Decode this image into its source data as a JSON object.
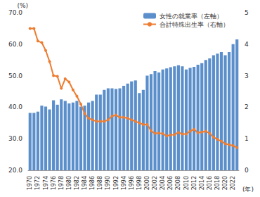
{
  "chart_data": {
    "type": "bar",
    "y_label": "(%)",
    "x_label": "(年)",
    "categories": [
      "1970",
      null,
      "1972",
      null,
      "1974",
      null,
      "1976",
      null,
      "1978",
      null,
      "1980",
      null,
      "1982",
      null,
      "1984",
      null,
      "1986",
      null,
      "1988",
      null,
      "1990",
      null,
      "1992",
      null,
      "1994",
      null,
      "1996",
      null,
      "1998",
      null,
      "2000",
      null,
      "2002",
      null,
      "2004",
      null,
      "2006",
      null,
      "2008",
      null,
      "2010",
      null,
      "2012",
      null,
      "2014",
      null,
      "2016",
      null,
      "2018",
      null,
      "2020",
      null,
      "2022",
      null
    ],
    "series": [
      {
        "name": "女性の就業率（左軸）",
        "type": "bar",
        "axis": "y",
        "color": "#5b8fcb",
        "values": [
          38.2,
          38.2,
          38.6,
          40.5,
          40.2,
          39.3,
          42.2,
          40.8,
          42.5,
          42.0,
          41.2,
          41.5,
          42.0,
          40.2,
          40.5,
          41.5,
          42.0,
          44.0,
          44.0,
          45.5,
          46.0,
          46.0,
          45.8,
          46.0,
          46.8,
          47.5,
          48.2,
          48.5,
          44.5,
          45.5,
          50.0,
          50.5,
          51.5,
          51.0,
          52.0,
          52.3,
          52.7,
          53.0,
          53.3,
          53.0,
          52.0,
          52.5,
          52.8,
          53.5,
          54.0,
          55.0,
          55.5,
          56.5,
          57.0,
          57.5,
          56.5,
          57.5,
          60.0,
          61.5
        ]
      },
      {
        "name": "合計特殊出生率（右軸）",
        "type": "line",
        "axis": "y2",
        "color": "#ed7d31",
        "marker": "circle",
        "values": [
          4.5,
          4.5,
          4.1,
          4.05,
          3.8,
          3.45,
          3.0,
          2.98,
          2.6,
          2.9,
          2.8,
          2.55,
          2.35,
          2.1,
          1.8,
          1.65,
          1.6,
          1.55,
          1.55,
          1.55,
          1.6,
          1.72,
          1.75,
          1.68,
          1.68,
          1.65,
          1.6,
          1.55,
          1.5,
          1.45,
          1.45,
          1.25,
          1.17,
          1.18,
          1.16,
          1.09,
          1.12,
          1.13,
          1.2,
          1.15,
          1.15,
          1.24,
          1.3,
          1.19,
          1.21,
          1.24,
          1.17,
          1.05,
          0.98,
          0.92,
          0.84,
          0.81,
          0.78,
          0.72
        ]
      }
    ],
    "ylim": [
      20,
      70
    ],
    "yticks": [
      {
        "value": 20,
        "label": "20.0"
      },
      {
        "value": 30,
        "label": "30.0"
      },
      {
        "value": 40,
        "label": "40.0"
      },
      {
        "value": 50,
        "label": "50.0"
      },
      {
        "value": 60,
        "label": "60.0"
      },
      {
        "value": 70,
        "label": "70.0"
      }
    ],
    "y2lim": [
      0,
      5
    ],
    "y2ticks": [
      0,
      1,
      2,
      3,
      4,
      5
    ],
    "legend": "upper right",
    "grid": false
  }
}
